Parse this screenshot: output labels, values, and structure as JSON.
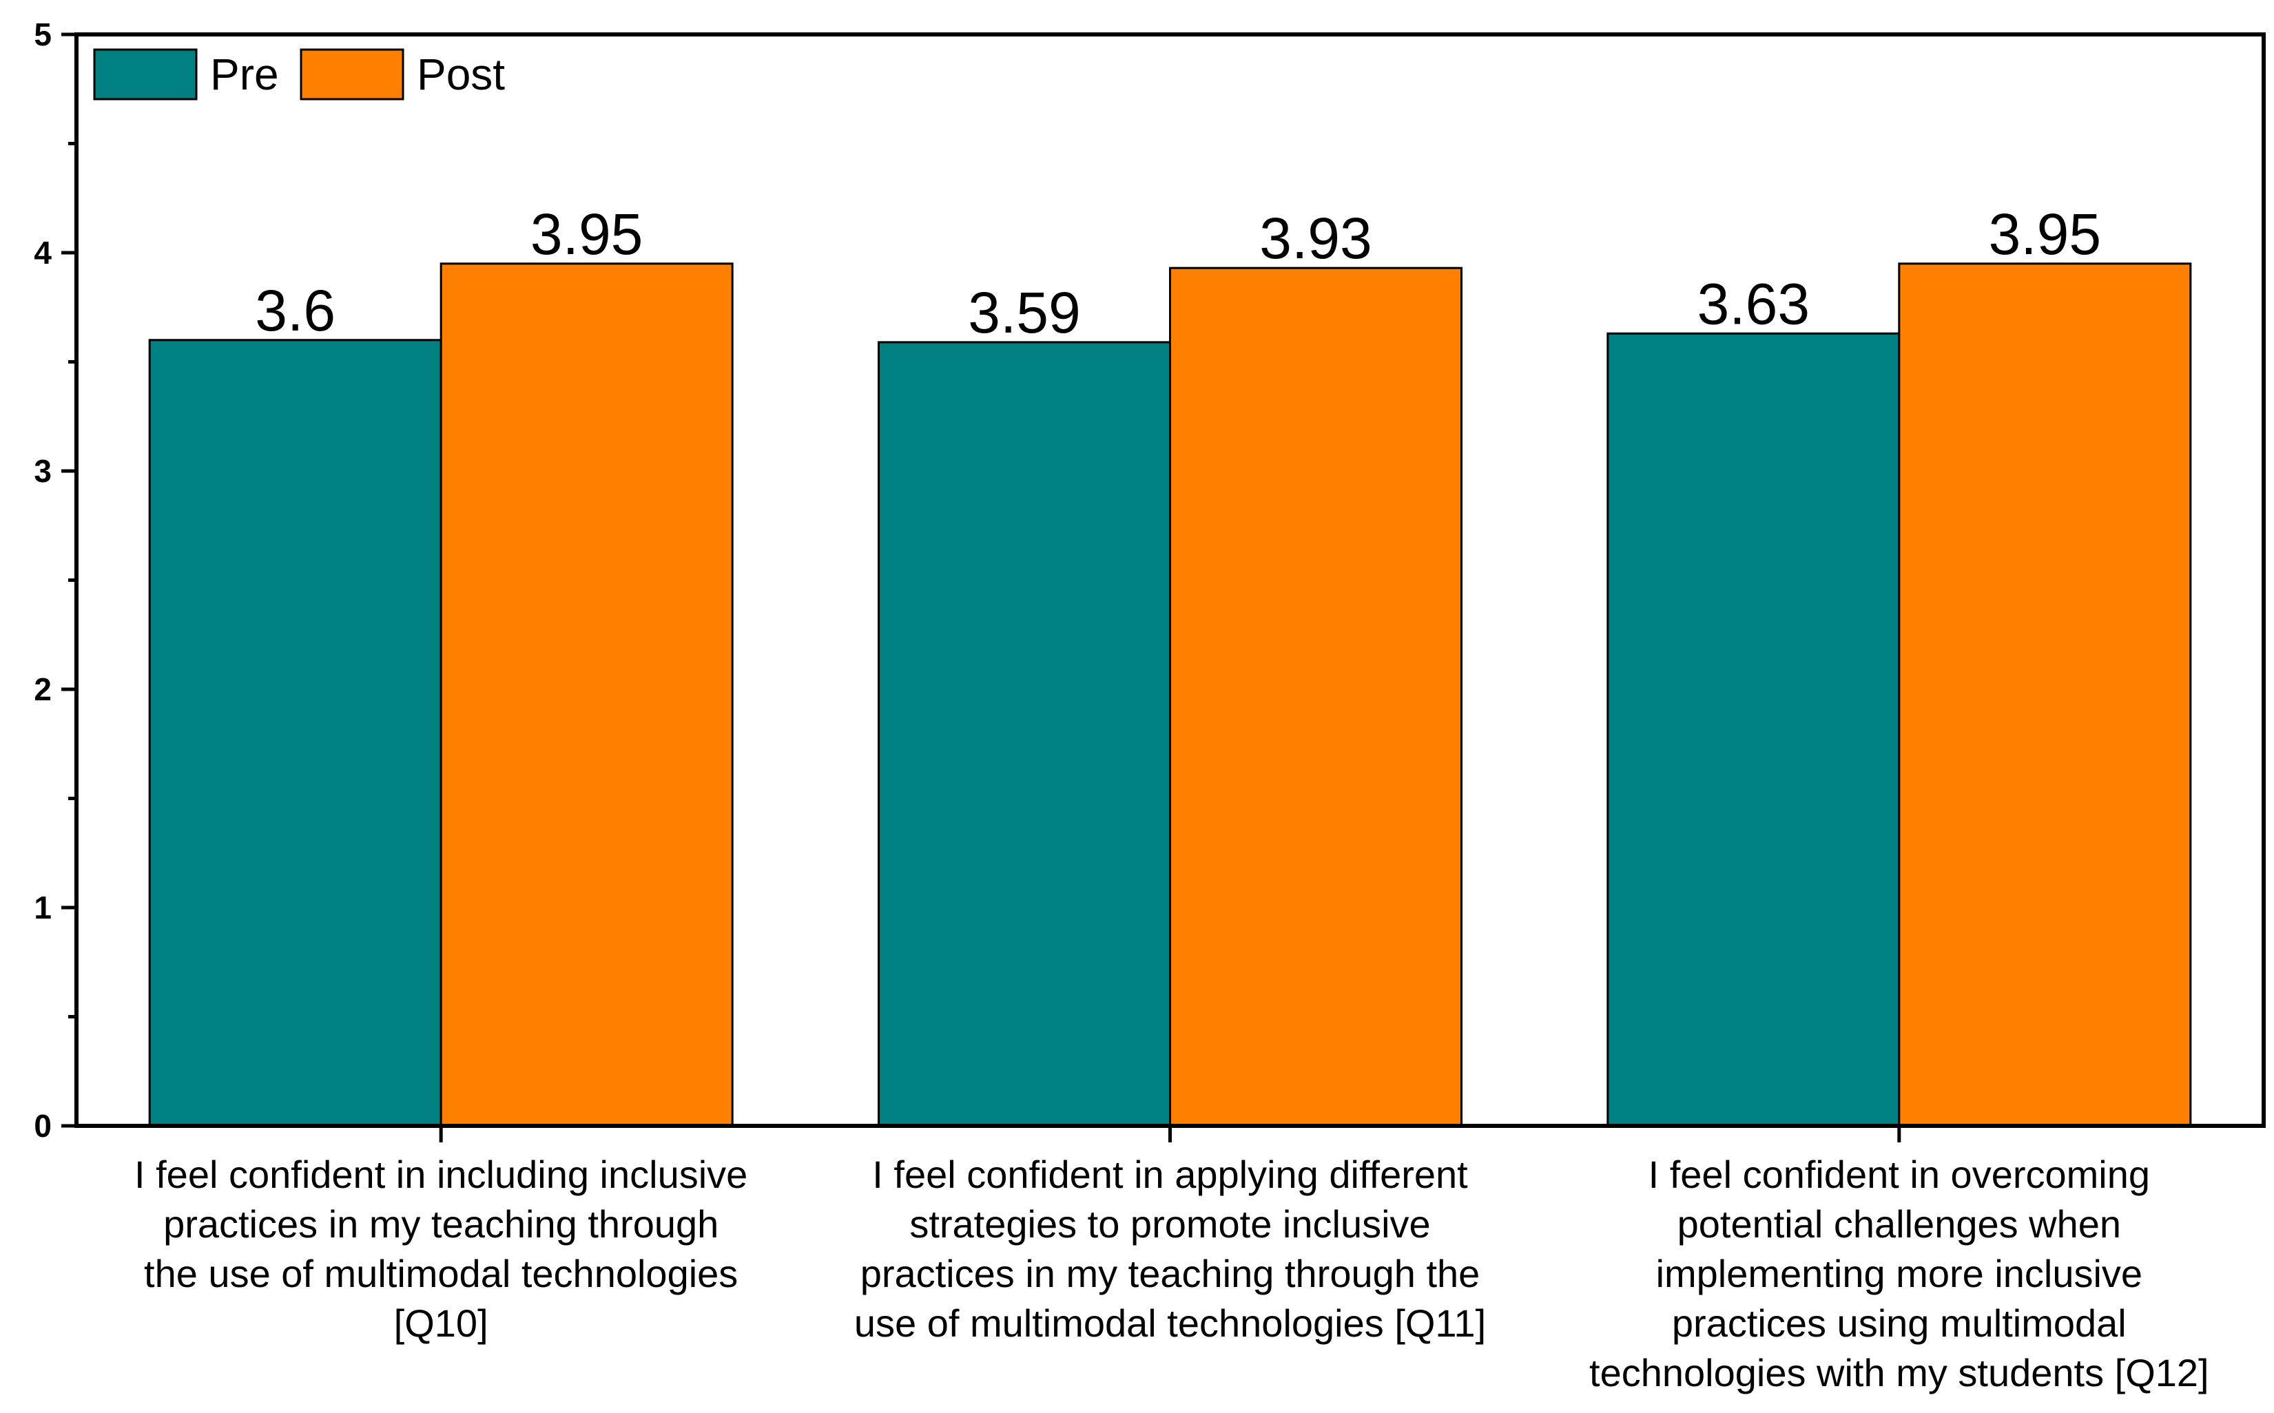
{
  "chart_data": {
    "type": "bar",
    "title": "",
    "xlabel": "",
    "ylabel": "",
    "ylim": [
      0,
      5
    ],
    "yticks": [
      "0",
      "1",
      "2",
      "3",
      "4",
      "5"
    ],
    "grid": false,
    "legend_position": "top-left",
    "categories": [
      {
        "id": "Q10",
        "lines": [
          "I feel confident in including inclusive",
          "practices in my teaching through",
          "the use of multimodal technologies",
          "[Q10]"
        ]
      },
      {
        "id": "Q11",
        "lines": [
          "I feel confident in applying different",
          "strategies to promote inclusive",
          "practices in my teaching through the",
          "use of multimodal technologies [Q11]"
        ]
      },
      {
        "id": "Q12",
        "lines": [
          "I feel confident in overcoming",
          "potential challenges when",
          "implementing more inclusive",
          "practices using multimodal",
          "technologies with my students [Q12]"
        ]
      }
    ],
    "series": [
      {
        "name": "Pre",
        "color": "#008080",
        "values": [
          3.6,
          3.59,
          3.63
        ],
        "labels": [
          "3.6",
          "3.59",
          "3.63"
        ]
      },
      {
        "name": "Post",
        "color": "#FF8000",
        "values": [
          3.95,
          3.93,
          3.95
        ],
        "labels": [
          "3.95",
          "3.93",
          "3.95"
        ]
      }
    ]
  }
}
